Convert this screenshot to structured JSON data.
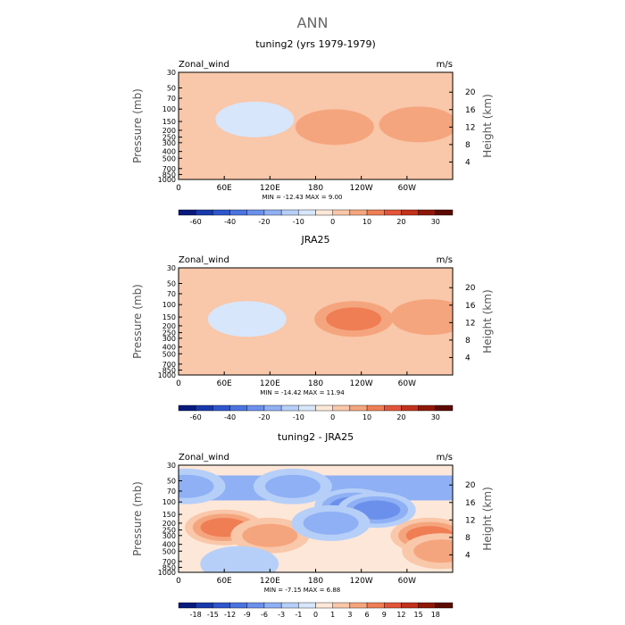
{
  "page": {
    "title": "ANN"
  },
  "panels": [
    {
      "title": "tuning2 (yrs 1979-1979)",
      "left_label": "Zonal_wind",
      "right_label": "m/s",
      "ylabel_left": "Pressure (mb)",
      "ylabel_right": "Height (km)",
      "minmax": "MIN = -12.43   MAX =   9.00"
    },
    {
      "title": "JRA25",
      "left_label": "Zonal_wind",
      "right_label": "m/s",
      "ylabel_left": "Pressure (mb)",
      "ylabel_right": "Height (km)",
      "minmax": "MIN = -14.42   MAX =  11.94"
    },
    {
      "title": "tuning2 - JRA25",
      "left_label": "Zonal_wind",
      "right_label": "m/s",
      "ylabel_left": "Pressure (mb)",
      "ylabel_right": "Height (km)",
      "minmax": "MIN = -7.15   MAX =   6.88"
    }
  ],
  "chart_data": [
    {
      "type": "heatmap",
      "title": "tuning2 (yrs 1979-1979)",
      "xlabel": "",
      "ylabel": "Pressure (mb)",
      "ylabel_right": "Height (km)",
      "x_ticks": [
        "0",
        "60E",
        "120E",
        "180",
        "120W",
        "60W"
      ],
      "x_tick_lon": [
        0,
        60,
        120,
        180,
        240,
        300
      ],
      "xlim": [
        0,
        360
      ],
      "y_ticks": [
        "30",
        "50",
        "70",
        "100",
        "150",
        "200",
        "250",
        "300",
        "400",
        "500",
        "700",
        "850",
        "1000"
      ],
      "y_tick_values": [
        30,
        50,
        70,
        100,
        150,
        200,
        250,
        300,
        400,
        500,
        700,
        850,
        1000
      ],
      "ylim": [
        1000,
        30
      ],
      "y_scale": "log",
      "y_right_ticks": [
        "4",
        "8",
        "12",
        "16",
        "20"
      ],
      "colorbar_levels": [
        -60,
        -50,
        -40,
        -30,
        -20,
        -15,
        -10,
        -5,
        0,
        5,
        10,
        15,
        20,
        25,
        30
      ],
      "colorbar_labels": [
        "-60",
        "-40",
        "-20",
        "-10",
        "0",
        "10",
        "20",
        "30"
      ],
      "colors": [
        "#081a7c",
        "#1839ac",
        "#2f56cc",
        "#4a74e0",
        "#6b90ec",
        "#8fb0f4",
        "#b6cff8",
        "#d7e6fb",
        "#fde7d8",
        "#f9c7a9",
        "#f5a57e",
        "#ef7e55",
        "#e2553a",
        "#c2311c",
        "#8e1808",
        "#5c0a03"
      ],
      "min": -12.43,
      "max": 9.0,
      "features": [
        {
          "lon": 205,
          "p": 180,
          "v": 9
        },
        {
          "lon": 315,
          "p": 165,
          "v": 8
        },
        {
          "lon": 50,
          "p": 310,
          "v": 1
        },
        {
          "lon": 110,
          "p": 350,
          "v": 3
        },
        {
          "lon": 270,
          "p": 500,
          "v": 3
        },
        {
          "lon": 100,
          "p": 140,
          "v": -6
        },
        {
          "lon": 240,
          "p": 35,
          "v": -3
        },
        {
          "lon": 230,
          "p": 880,
          "v": -2
        },
        {
          "lon": 130,
          "p": 900,
          "v": -1
        }
      ]
    },
    {
      "type": "heatmap",
      "title": "JRA25",
      "xlabel": "",
      "ylabel": "Pressure (mb)",
      "ylabel_right": "Height (km)",
      "x_ticks": [
        "0",
        "60E",
        "120E",
        "180",
        "120W",
        "60W"
      ],
      "x_tick_lon": [
        0,
        60,
        120,
        180,
        240,
        300
      ],
      "xlim": [
        0,
        360
      ],
      "y_ticks": [
        "30",
        "50",
        "70",
        "100",
        "150",
        "200",
        "250",
        "300",
        "400",
        "500",
        "700",
        "850",
        "1000"
      ],
      "y_tick_values": [
        30,
        50,
        70,
        100,
        150,
        200,
        250,
        300,
        400,
        500,
        700,
        850,
        1000
      ],
      "ylim": [
        1000,
        30
      ],
      "y_scale": "log",
      "y_right_ticks": [
        "4",
        "8",
        "12",
        "16",
        "20"
      ],
      "colorbar_levels": [
        -60,
        -50,
        -40,
        -30,
        -20,
        -15,
        -10,
        -5,
        0,
        5,
        10,
        15,
        20,
        25,
        30
      ],
      "colorbar_labels": [
        "-60",
        "-40",
        "-20",
        "-10",
        "0",
        "10",
        "20",
        "30"
      ],
      "colors": [
        "#081a7c",
        "#1839ac",
        "#2f56cc",
        "#4a74e0",
        "#6b90ec",
        "#8fb0f4",
        "#b6cff8",
        "#d7e6fb",
        "#fde7d8",
        "#f9c7a9",
        "#f5a57e",
        "#ef7e55",
        "#e2553a",
        "#c2311c",
        "#8e1808",
        "#5c0a03"
      ],
      "min": -14.42,
      "max": 11.94,
      "features": [
        {
          "lon": 230,
          "p": 160,
          "v": 12
        },
        {
          "lon": 330,
          "p": 150,
          "v": 8
        },
        {
          "lon": 60,
          "p": 480,
          "v": 3
        },
        {
          "lon": 110,
          "p": 360,
          "v": 2
        },
        {
          "lon": 240,
          "p": 600,
          "v": 2
        },
        {
          "lon": 90,
          "p": 160,
          "v": -7
        },
        {
          "lon": 180,
          "p": 31,
          "v": -3
        },
        {
          "lon": 230,
          "p": 900,
          "v": -1
        }
      ]
    },
    {
      "type": "heatmap",
      "title": "tuning2 - JRA25",
      "xlabel": "",
      "ylabel": "Pressure (mb)",
      "ylabel_right": "Height (km)",
      "x_ticks": [
        "0",
        "60E",
        "120E",
        "180",
        "120W",
        "60W"
      ],
      "x_tick_lon": [
        0,
        60,
        120,
        180,
        240,
        300
      ],
      "xlim": [
        0,
        360
      ],
      "y_ticks": [
        "30",
        "50",
        "70",
        "100",
        "150",
        "200",
        "250",
        "300",
        "400",
        "500",
        "700",
        "850",
        "1000"
      ],
      "y_tick_values": [
        30,
        50,
        70,
        100,
        150,
        200,
        250,
        300,
        400,
        500,
        700,
        850,
        1000
      ],
      "ylim": [
        1000,
        30
      ],
      "y_scale": "log",
      "y_right_ticks": [
        "4",
        "8",
        "12",
        "16",
        "20"
      ],
      "colorbar_levels": [
        -18,
        -15,
        -12,
        -9,
        -6,
        -3,
        -1,
        0,
        1,
        3,
        6,
        9,
        12,
        15,
        18
      ],
      "colorbar_labels": [
        "-18",
        "-15",
        "-12",
        "-9",
        "-6",
        "-3",
        "-1",
        "0",
        "1",
        "3",
        "6",
        "9",
        "12",
        "15",
        "18"
      ],
      "colors": [
        "#081a7c",
        "#1839ac",
        "#2f56cc",
        "#4a74e0",
        "#6b90ec",
        "#8fb0f4",
        "#b6cff8",
        "#d7e6fb",
        "#fde7d8",
        "#f9c7a9",
        "#f5a57e",
        "#ef7e55",
        "#e2553a",
        "#c2311c",
        "#8e1808",
        "#5c0a03"
      ],
      "min": -7.15,
      "max": 6.88,
      "features": [
        {
          "lon": 60,
          "p": 230,
          "v": 6
        },
        {
          "lon": 120,
          "p": 300,
          "v": 3
        },
        {
          "lon": 330,
          "p": 300,
          "v": 6
        },
        {
          "lon": 345,
          "p": 500,
          "v": 4
        },
        {
          "lon": 230,
          "p": 115,
          "v": -7
        },
        {
          "lon": 260,
          "p": 130,
          "v": -6
        },
        {
          "lon": 150,
          "p": 60,
          "v": -5
        },
        {
          "lon": 10,
          "p": 60,
          "v": -4
        },
        {
          "lon": 200,
          "p": 200,
          "v": -3
        },
        {
          "lon": 80,
          "p": 760,
          "v": -2
        }
      ],
      "base": "upper-negative"
    }
  ],
  "colors": {
    "page_bg": "#ffffff",
    "title_gray": "#666666"
  }
}
